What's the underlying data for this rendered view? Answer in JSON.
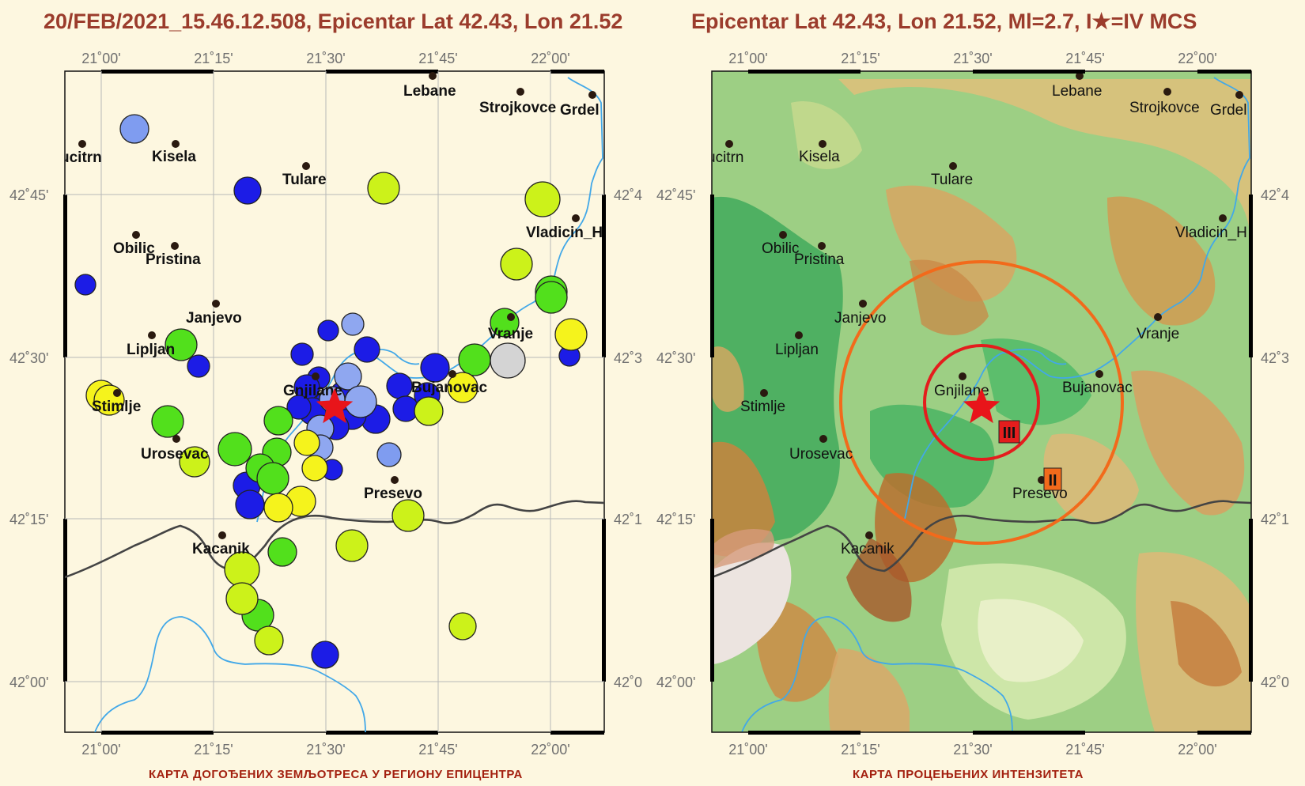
{
  "left_map": {
    "title": "20/FEB/2021_15.46.12.508, Epicentar Lat 42.43, Lon 21.52",
    "caption": "КАРТА ДОГОЂЕНИХ ЗЕМЉОТРЕСА У РЕГИОНУ ЕПИЦЕНТРА"
  },
  "right_map": {
    "title": "Epicentar Lat 42.43, Lon 21.52, Ml=2.7, I★=IV MCS",
    "caption": "КАРТА ПРОЦЕЊЕНИХ ИНТЕНЗИТЕТА",
    "intensity_labels": [
      "III",
      "II"
    ]
  },
  "lon_ticks": [
    "21˚00'",
    "21˚15'",
    "21˚30'",
    "21˚45'",
    "22˚00'"
  ],
  "lat_ticks_left": [
    "42˚45'",
    "42˚30'",
    "42˚15'",
    "42˚00'"
  ],
  "lat_ticks_right": [
    "42˚4",
    "42˚3",
    "42˚1",
    "42˚0"
  ],
  "lat_ticks_right_map_right": [
    "42˚4",
    "42˚3",
    "42˚1",
    "42˚0"
  ],
  "towns": [
    {
      "name": "Lebane",
      "lon": 21.73,
      "lat": 42.92
    },
    {
      "name": "Strojkovce",
      "lon": 21.93,
      "lat": 42.9
    },
    {
      "name": "Grdel",
      "lon": 22.06,
      "lat": 42.89
    },
    {
      "name": "Vucitrn",
      "lon": 20.97,
      "lat": 42.82
    },
    {
      "name": "Kisela",
      "lon": 21.1,
      "lat": 42.82
    },
    {
      "name": "Tulare",
      "lon": 21.42,
      "lat": 42.8
    },
    {
      "name": "Vladicin_Han",
      "lon": 22.03,
      "lat": 42.71
    },
    {
      "name": "Obilic",
      "lon": 21.05,
      "lat": 42.69
    },
    {
      "name": "Pristina",
      "lon": 21.16,
      "lat": 42.67
    },
    {
      "name": "Janjevo",
      "lon": 21.23,
      "lat": 42.58
    },
    {
      "name": "Vranje",
      "lon": 21.9,
      "lat": 42.55
    },
    {
      "name": "Lipljan",
      "lon": 21.12,
      "lat": 42.52
    },
    {
      "name": "Gnjilane",
      "lon": 21.47,
      "lat": 42.46
    },
    {
      "name": "Bujanovac",
      "lon": 21.77,
      "lat": 42.46
    },
    {
      "name": "Stimlje",
      "lon": 21.04,
      "lat": 42.43
    },
    {
      "name": "Urosevac",
      "lon": 21.16,
      "lat": 42.37
    },
    {
      "name": "Presevo",
      "lon": 21.65,
      "lat": 42.31
    },
    {
      "name": "Kacanik",
      "lon": 21.26,
      "lat": 42.23
    }
  ],
  "epicenter": {
    "lat": 42.43,
    "lon": 21.52
  },
  "colors": {
    "title": "#9b3c2c",
    "caption": "#a3200f",
    "epicenter_star": "#e8151a",
    "ring_inner": "#e41d1d",
    "ring_outer": "#f26a1b",
    "river": "#42a8e8",
    "border": "#444444",
    "map_bg_left": "#fdf7e0"
  }
}
